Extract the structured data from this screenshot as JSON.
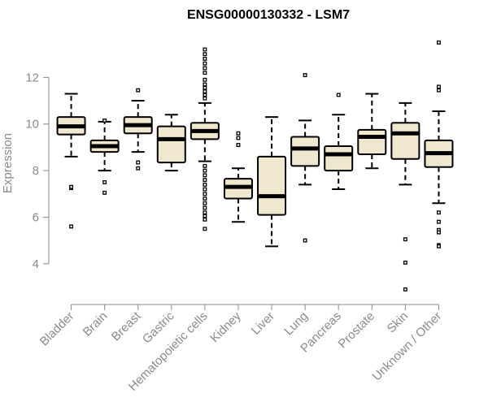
{
  "chart_data": {
    "type": "boxplot",
    "title": "ENSG00000130332 - LSM7",
    "xlabel": "",
    "ylabel": "Expression",
    "ylim": [
      2.6,
      14.0
    ],
    "yticks": [
      4,
      6,
      8,
      10,
      12
    ],
    "grid": false,
    "box_color": "#efe8cf",
    "categories": [
      "Bladder",
      "Brain",
      "Breast",
      "Gastric",
      "Hematopoietic cells",
      "Kidney",
      "Liver",
      "Lung",
      "Pancreas",
      "Prostate",
      "Skin",
      "Unknown / Other"
    ],
    "boxes": [
      {
        "q1": 9.55,
        "median": 9.9,
        "q3": 10.3,
        "whisker_low": 8.6,
        "whisker_high": 11.3,
        "outliers": [
          7.25,
          7.3,
          5.6
        ]
      },
      {
        "q1": 8.8,
        "median": 9.05,
        "q3": 9.3,
        "whisker_low": 8.0,
        "whisker_high": 10.1,
        "outliers": [
          10.15,
          7.5,
          7.05
        ]
      },
      {
        "q1": 9.6,
        "median": 9.95,
        "q3": 10.3,
        "whisker_low": 8.8,
        "whisker_high": 11.0,
        "outliers": [
          11.45,
          8.35,
          8.1
        ]
      },
      {
        "q1": 8.35,
        "median": 9.35,
        "q3": 9.9,
        "whisker_low": 8.0,
        "whisker_high": 10.4,
        "outliers": []
      },
      {
        "q1": 9.35,
        "median": 9.7,
        "q3": 10.05,
        "whisker_low": 8.4,
        "whisker_high": 10.9,
        "outliers": [
          13.2,
          13.0,
          12.8,
          12.6,
          12.4,
          12.2,
          11.9,
          11.7,
          11.55,
          11.4,
          11.25,
          11.1,
          8.2,
          8.0,
          7.8,
          7.6,
          7.4,
          7.2,
          7.0,
          6.8,
          6.6,
          6.4,
          6.2,
          6.05,
          5.9,
          5.5
        ]
      },
      {
        "q1": 6.8,
        "median": 7.3,
        "q3": 7.65,
        "whisker_low": 5.8,
        "whisker_high": 8.1,
        "outliers": [
          9.6,
          9.4,
          9.1
        ]
      },
      {
        "q1": 6.1,
        "median": 6.9,
        "q3": 8.6,
        "whisker_low": 4.75,
        "whisker_high": 10.3,
        "outliers": []
      },
      {
        "q1": 8.2,
        "median": 8.95,
        "q3": 9.45,
        "whisker_low": 7.4,
        "whisker_high": 10.15,
        "outliers": [
          12.1,
          5.0
        ]
      },
      {
        "q1": 8.0,
        "median": 8.7,
        "q3": 9.05,
        "whisker_low": 7.2,
        "whisker_high": 10.4,
        "outliers": [
          11.25
        ]
      },
      {
        "q1": 8.7,
        "median": 9.45,
        "q3": 9.75,
        "whisker_low": 8.1,
        "whisker_high": 11.3,
        "outliers": []
      },
      {
        "q1": 8.5,
        "median": 9.6,
        "q3": 10.05,
        "whisker_low": 7.4,
        "whisker_high": 10.9,
        "outliers": [
          5.05,
          4.05,
          2.9
        ]
      },
      {
        "q1": 8.15,
        "median": 8.75,
        "q3": 9.3,
        "whisker_low": 6.6,
        "whisker_high": 10.55,
        "outliers": [
          13.5,
          11.6,
          11.45,
          6.2,
          5.8,
          5.45,
          5.35,
          4.8,
          4.75
        ]
      }
    ]
  }
}
